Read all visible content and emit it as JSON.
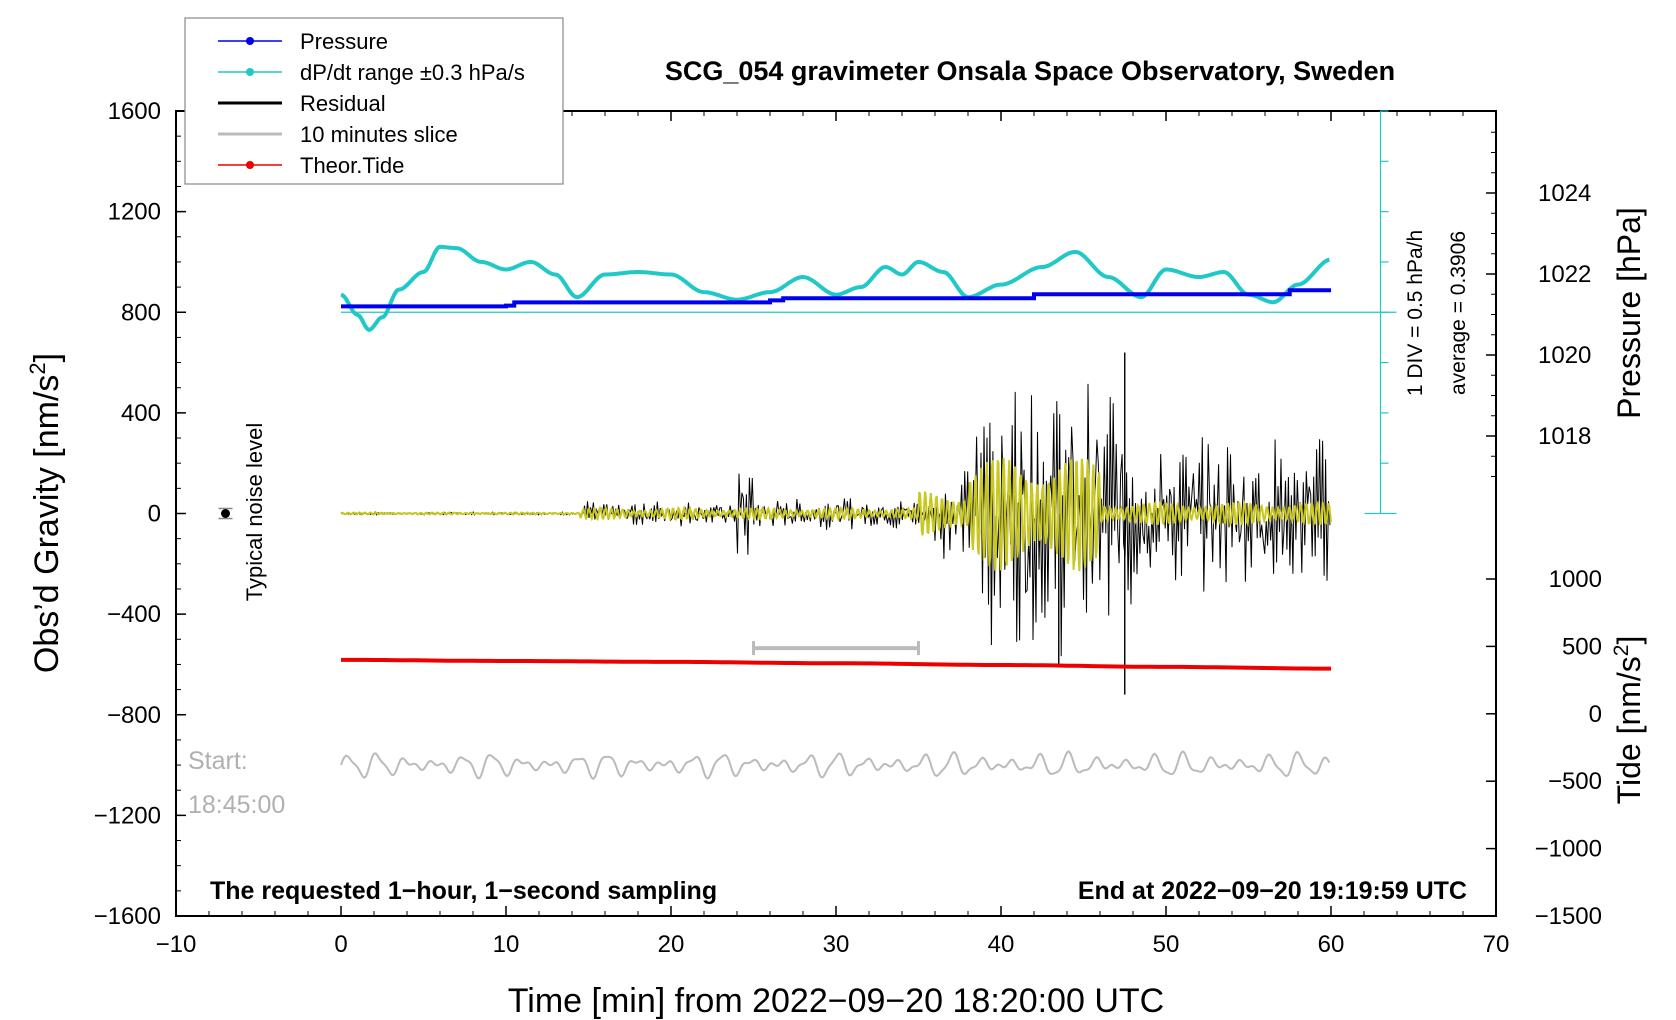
{
  "chart_data": {
    "type": "line",
    "title": "SCG_054 gravimeter Onsala Space Observatory, Sweden",
    "xlabel": "Time [min] from 2022−09−20 18:20:00 UTC",
    "ylabel_left": "Obs’d Gravity [nm/s",
    "ylabel_left_sup": "2",
    "ylabel_left_close": "]",
    "ylabel_right_pressure": "Pressure [hPa]",
    "ylabel_right_tide": "Tide [nm/s",
    "ylabel_right_tide_sup": "2",
    "ylabel_right_tide_close": "]",
    "xlim": [
      -10,
      70
    ],
    "ylim": [
      -1600,
      1600
    ],
    "x_ticks": [
      "−10",
      "0",
      "10",
      "20",
      "30",
      "40",
      "50",
      "60",
      "70"
    ],
    "y_ticks": [
      "1600",
      "1200",
      "800",
      "400",
      "0",
      "−400",
      "−800",
      "−1200",
      "−1600"
    ],
    "pressure_ticks": [
      "1024",
      "1022",
      "1020",
      "1018"
    ],
    "tide_ticks": [
      "1000",
      "500",
      "0",
      "−500",
      "−1000",
      "−1500"
    ],
    "legend": [
      {
        "label": "Pressure",
        "color": "#0000ee",
        "marker": true
      },
      {
        "label": "dP/dt range ±0.3 hPa/s",
        "color": "#20c8c8",
        "marker": true
      },
      {
        "label": "Residual",
        "color": "#000000",
        "marker": false
      },
      {
        "label": "10 minutes slice",
        "color": "#bbbbbb",
        "marker": false
      },
      {
        "label": "Theor.Tide",
        "color": "#ee0000",
        "marker": true
      }
    ],
    "pressure_series": {
      "name": "Pressure",
      "x": [
        0,
        10,
        10.5,
        26,
        26.8,
        42,
        57.5,
        60
      ],
      "y": [
        1021.2,
        1021.22,
        1021.3,
        1021.35,
        1021.4,
        1021.5,
        1021.6,
        1021.6
      ]
    },
    "dpdt_series": {
      "name": "dP/dt",
      "x": [
        0,
        1,
        1.7,
        2.5,
        3.5,
        5,
        6,
        7,
        8.5,
        10,
        11.5,
        13,
        14.3,
        16,
        18,
        20,
        22,
        24,
        26,
        28,
        30,
        31.5,
        33,
        34,
        35,
        36.5,
        38,
        40,
        42.5,
        44.5,
        46.5,
        48.5,
        50,
        52,
        53.5,
        55,
        56.5,
        58,
        60
      ],
      "y": [
        870,
        790,
        730,
        780,
        890,
        960,
        1060,
        1055,
        1000,
        970,
        1000,
        950,
        860,
        950,
        960,
        950,
        880,
        850,
        880,
        940,
        870,
        900,
        980,
        950,
        1000,
        960,
        860,
        910,
        980,
        1040,
        940,
        860,
        970,
        940,
        960,
        870,
        840,
        910,
        1010
      ]
    },
    "residual_envelope": {
      "name": "Residual",
      "segments": [
        {
          "x": [
            0,
            14.5
          ],
          "amp": 5
        },
        {
          "x": [
            14.5,
            24
          ],
          "amp": 45
        },
        {
          "x": [
            24,
            25
          ],
          "amp": 200
        },
        {
          "x": [
            25,
            36
          ],
          "amp": 55
        },
        {
          "x": [
            36,
            38.5
          ],
          "amp": 150
        },
        {
          "x": [
            38.5,
            48
          ],
          "amp": 480
        },
        {
          "x": [
            48,
            60
          ],
          "amp": 260
        }
      ],
      "spikes": [
        {
          "x": 47.5,
          "y": 640
        },
        {
          "x": 47.5,
          "y": -720
        },
        {
          "x": 43.5,
          "y": -600
        }
      ]
    },
    "filtered_series": {
      "name": "Residual (filtered, yellow)",
      "segments": [
        {
          "x": [
            0,
            14.5
          ],
          "amp": 4
        },
        {
          "x": [
            14.5,
            35
          ],
          "amp": 22
        },
        {
          "x": [
            35,
            38
          ],
          "amp": 90
        },
        {
          "x": [
            38,
            46
          ],
          "amp": 230
        },
        {
          "x": [
            46,
            60
          ],
          "amp": 45
        }
      ]
    },
    "tide_series": {
      "name": "Theor.Tide",
      "x": [
        0,
        10,
        20,
        30,
        40,
        50,
        60
      ],
      "y": [
        400,
        392,
        385,
        375,
        362,
        348,
        335
      ]
    },
    "slice_bar": {
      "x": [
        25,
        35
      ],
      "y": -535
    },
    "noise_level": {
      "x": -7,
      "y": 0,
      "err": 20
    },
    "pressure_scale": {
      "x": 63,
      "y_from": 0,
      "y_to": 1600,
      "div": 200,
      "text1": "1 DIV = 0.5 hPa/h",
      "text2": "average = 0.3906"
    },
    "slice_trace": {
      "x": [
        0,
        60
      ],
      "baseline": -1000,
      "amp": 45
    },
    "annotations": {
      "start_label": "Start:",
      "start_time": "18:45:00",
      "noise_label": "Typical noise level",
      "bottom_left": "The requested 1−hour, 1−second sampling",
      "bottom_right": "End at 2022−09−20 19:19:59 UTC"
    }
  }
}
